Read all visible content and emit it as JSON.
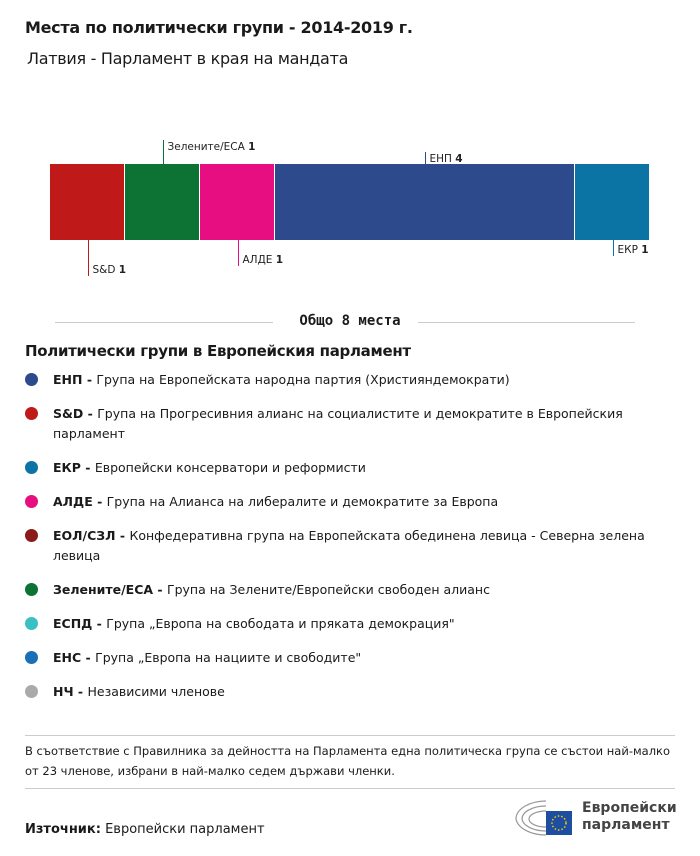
{
  "header": {
    "title": "Места по политически групи - 2014-2019 г.",
    "subtitle": "Латвия - Парламент в края на мандата"
  },
  "chart_data": {
    "type": "bar",
    "orientation": "stacked-horizontal",
    "categories": [
      "S&D",
      "Зелените/ЕСА",
      "АЛДЕ",
      "ЕНП",
      "ЕКР"
    ],
    "values": [
      1,
      1,
      1,
      4,
      1
    ],
    "colors": [
      "#c0191a",
      "#0c7334",
      "#e60e80",
      "#2d4a8d",
      "#0b74a5"
    ],
    "label_positions": [
      "below",
      "above",
      "below",
      "above",
      "below"
    ]
  },
  "total": {
    "label": "Общо 8 места"
  },
  "legend": {
    "title": "Политически групи в Европейския парламент",
    "items": [
      {
        "abbr": "ЕНП",
        "desc": "Група на Европейската народна партия (Християндемократи)",
        "color": "#2d4a8d"
      },
      {
        "abbr": "S&D",
        "desc": "Група на Прогресивния алианс на социалистите и демократите в Европейския парламент",
        "color": "#c0191a"
      },
      {
        "abbr": "ЕКР",
        "desc": "Европейски консерватори и реформисти",
        "color": "#0b74a5"
      },
      {
        "abbr": "АЛДЕ",
        "desc": "Група на Алианса на либералите и демократите за Европа",
        "color": "#e60e80"
      },
      {
        "abbr": "ЕОЛ/СЗЛ",
        "desc": "Конфедеративна група на Европейската обединена левица - Северна зелена левица",
        "color": "#8b1a1a"
      },
      {
        "abbr": "Зелените/ЕСА",
        "desc": "Група на Зелените/Европейски свободен алианс",
        "color": "#0c7334"
      },
      {
        "abbr": "ЕСПД",
        "desc": "Група „Европа на свободата и пряката демокрация\"",
        "color": "#3ac0c3"
      },
      {
        "abbr": "ЕНС",
        "desc": "Група „Европа на нациите и свободите\"",
        "color": "#1a6fb5"
      },
      {
        "abbr": "НЧ",
        "desc": "Независими членове",
        "color": "#aaaaaa"
      }
    ]
  },
  "note": "В съответствие с Правилника за дейността на Парламента една политическа група се състои най-малко от 23 членове, избрани в най-малко седем държави членки.",
  "source": {
    "label": "Източник:",
    "value": "Европейски парламент"
  },
  "logo": {
    "line1": "Европейски",
    "line2": "парламент"
  }
}
